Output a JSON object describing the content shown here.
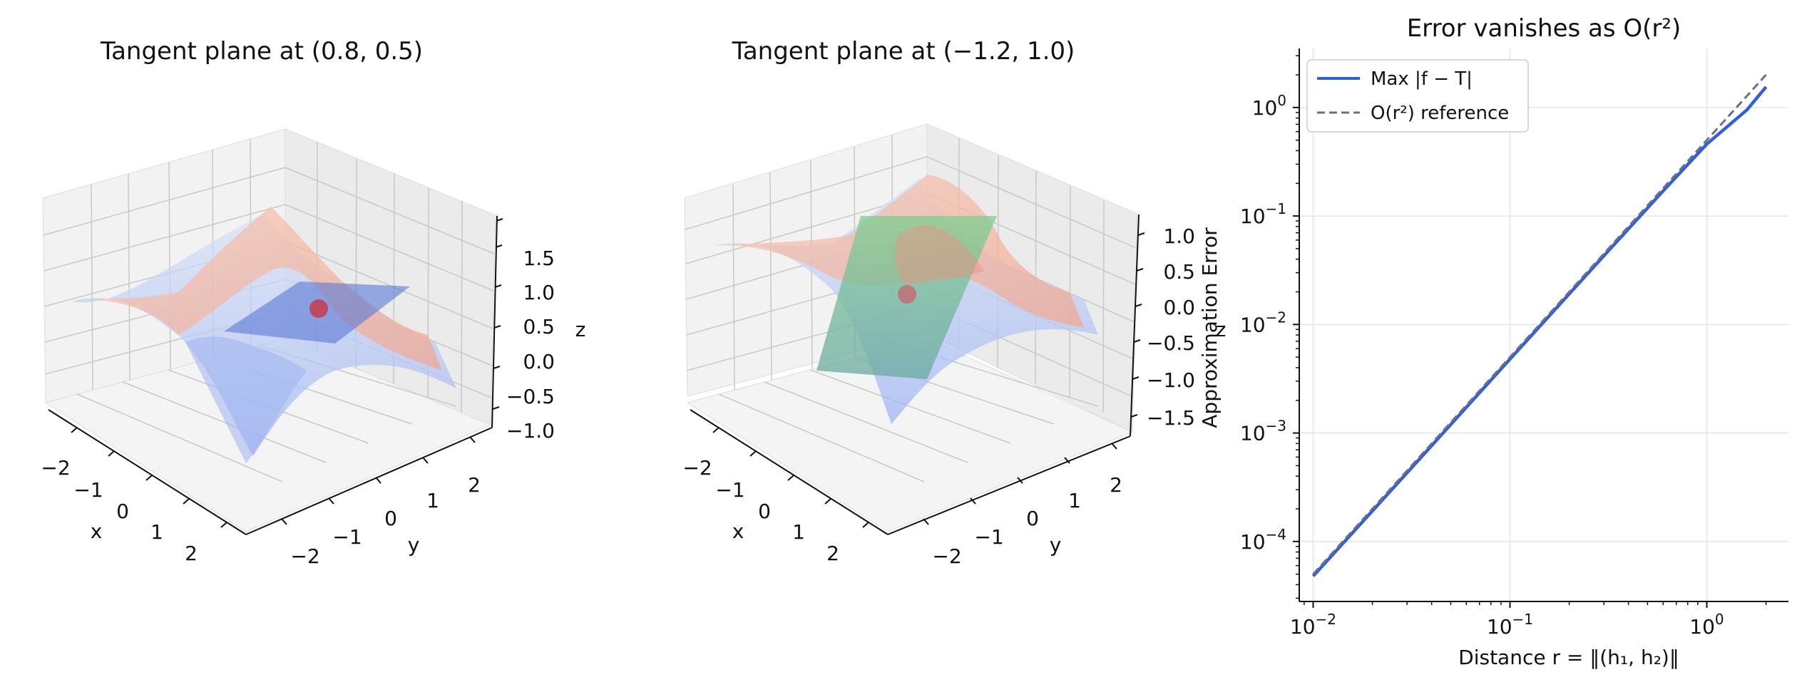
{
  "chart_data": [
    {
      "type": "surface3d",
      "title": "Tangent plane at (0.8, 0.5)",
      "xlabel": "x",
      "ylabel": "y",
      "zlabel": "z",
      "xticks": [
        "−2",
        "−1",
        "0",
        "1",
        "2"
      ],
      "yticks": [
        "−2",
        "−1",
        "0",
        "1",
        "2"
      ],
      "zticks": [
        "−1.0",
        "−0.5",
        "0.0",
        "0.5",
        "1.0",
        "1.5"
      ],
      "point": {
        "x": 0.8,
        "y": 0.5
      },
      "colors": {
        "surface_pos": "#f2b09a",
        "surface_neg": "#aebff5",
        "plane": "#5a78d6",
        "point": "#c83a4a"
      }
    },
    {
      "type": "surface3d",
      "title": "Tangent plane at (−1.2, 1.0)",
      "xlabel": "x",
      "ylabel": "y",
      "zlabel": "z",
      "xticks": [
        "−2",
        "−1",
        "0",
        "1",
        "2"
      ],
      "yticks": [
        "−2",
        "−1",
        "0",
        "1",
        "2"
      ],
      "zticks": [
        "−1.5",
        "−1.0",
        "−0.5",
        "0.0",
        "0.5",
        "1.0"
      ],
      "point": {
        "x": -1.2,
        "y": 1.0
      },
      "colors": {
        "surface_pos": "#f2b09a",
        "surface_neg": "#aebff5",
        "plane": "#7cc48f",
        "point": "#c8636a"
      }
    },
    {
      "type": "line",
      "title": "Error vanishes as O(r²)",
      "xlabel": "Distance r = ‖(h₁, h₂)‖",
      "ylabel": "Approximation Error",
      "xscale": "log",
      "yscale": "log",
      "xlim": [
        0.0085,
        2.6
      ],
      "ylim": [
        2.8e-05,
        3.5
      ],
      "xticks": [
        {
          "value": 0.01,
          "base": "10",
          "exp": "−2"
        },
        {
          "value": 0.1,
          "base": "10",
          "exp": "−1"
        },
        {
          "value": 1,
          "base": "10",
          "exp": "0"
        }
      ],
      "yticks": [
        {
          "value": 0.0001,
          "base": "10",
          "exp": "−4"
        },
        {
          "value": 0.001,
          "base": "10",
          "exp": "−3"
        },
        {
          "value": 0.01,
          "base": "10",
          "exp": "−2"
        },
        {
          "value": 0.1,
          "base": "10",
          "exp": "−1"
        },
        {
          "value": 1,
          "base": "10",
          "exp": "0"
        }
      ],
      "grid": true,
      "legend_position": "top-left",
      "series": [
        {
          "name": "Max |f − T|",
          "color": "#2f5ee0",
          "dash": "solid",
          "x": [
            0.01,
            0.03,
            0.1,
            0.3,
            0.6,
            1.0,
            1.6,
            2.0
          ],
          "y": [
            4.8e-05,
            0.00043,
            0.0048,
            0.043,
            0.17,
            0.46,
            0.95,
            1.55
          ]
        },
        {
          "name": "O(r²) reference",
          "color": "#6b6f80",
          "dash": "dashed",
          "x": [
            0.01,
            0.1,
            1.0,
            2.0
          ],
          "y": [
            5e-05,
            0.005,
            0.5,
            2.0
          ]
        }
      ]
    }
  ]
}
